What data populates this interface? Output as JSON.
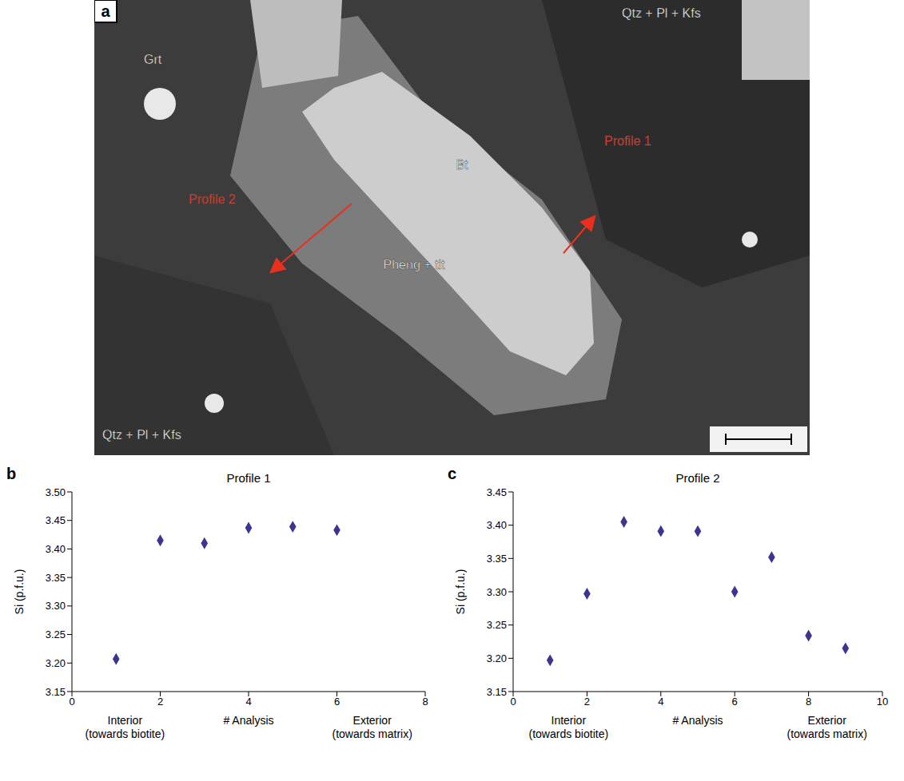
{
  "image": {
    "letter": "a",
    "labels": [
      "Qtz + Pl + Kfs",
      "Grt",
      "Bt",
      "Pheng + tit",
      "Qtz + Pl + Kfs"
    ],
    "profiles": [
      "Profile 1",
      "Profile 2"
    ]
  },
  "chart_data": [
    {
      "letter": "b",
      "type": "scatter",
      "title": "Profile 1",
      "xlabel": "# Analysis",
      "ylabel": "Si (p.f.u.)",
      "annotations": [
        "Interior (towards biotite)",
        "Exterior (towards matrix)"
      ],
      "x": [
        1,
        2,
        3,
        4,
        5,
        6
      ],
      "values": [
        3.207,
        3.415,
        3.41,
        3.437,
        3.439,
        3.433
      ],
      "color": "#3b3491",
      "marker": "diamond",
      "grid": false,
      "xlim": [
        0,
        8
      ],
      "xticks": [
        0,
        2,
        4,
        6,
        8
      ],
      "ylim": [
        3.15,
        3.5
      ],
      "yticks": [
        3.15,
        {
          "value": 3.2,
          "label": "3.20"
        },
        3.25,
        {
          "value": 3.3,
          "label": "3.30"
        },
        3.35,
        {
          "value": 3.4,
          "label": "3.40"
        },
        3.45,
        {
          "value": 3.5,
          "label": "3.50"
        }
      ]
    },
    {
      "letter": "c",
      "type": "scatter",
      "title": "Profile 2",
      "xlabel": "# Analysis",
      "ylabel": "Si (p.f.u.)",
      "annotations": [
        "Interior (towards biotite)",
        "Exterior (towards matrix)"
      ],
      "x": [
        1,
        2,
        3,
        4,
        5,
        6,
        7,
        8,
        9
      ],
      "values": [
        3.197,
        3.297,
        3.405,
        3.391,
        3.391,
        3.3,
        3.352,
        3.234,
        3.215
      ],
      "color": "#3b3491",
      "marker": "diamond",
      "grid": false,
      "xlim": [
        0,
        10
      ],
      "xticks": [
        0,
        2,
        4,
        6,
        8,
        10
      ],
      "ylim": [
        3.15,
        3.45
      ],
      "yticks": [
        3.15,
        {
          "value": 3.2,
          "label": "3.20"
        },
        3.25,
        {
          "value": 3.3,
          "label": "3.30"
        },
        3.35,
        {
          "value": 3.4,
          "label": "3.40"
        },
        3.45
      ]
    }
  ]
}
